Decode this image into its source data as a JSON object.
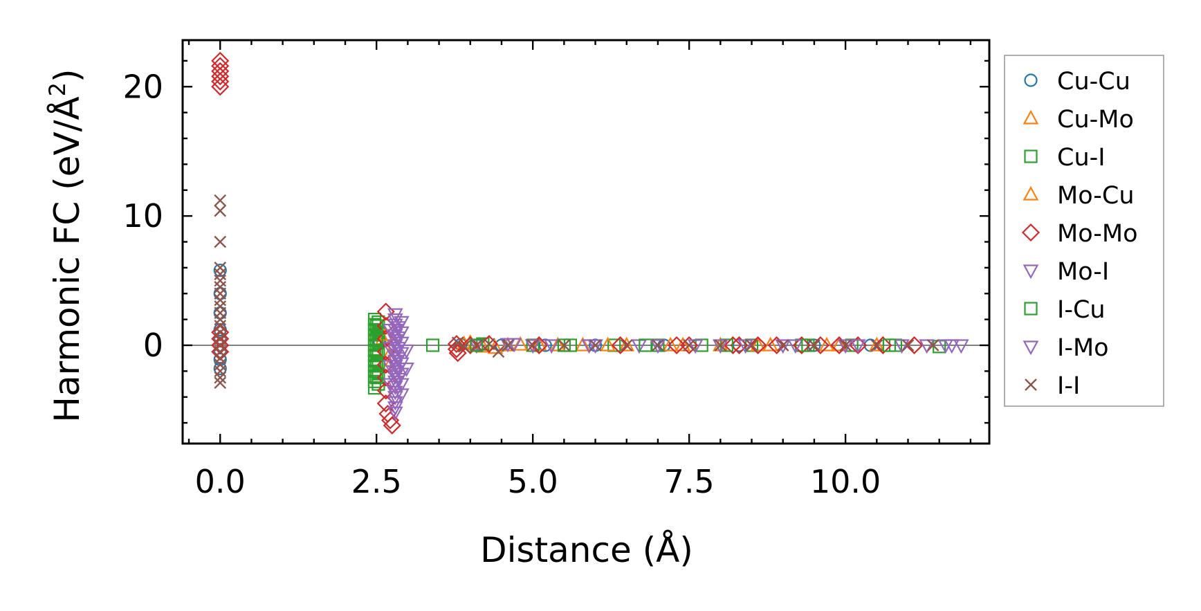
{
  "chart_data": {
    "type": "scatter",
    "xlabel": "Distance (Å)",
    "ylabel_main": "Harmonic FC (eV/Å",
    "ylabel_sup": "2",
    "ylabel_end": ")",
    "xlim": [
      -0.6,
      12.3
    ],
    "ylim": [
      -7.6,
      23.6
    ],
    "xticks": [
      {
        "value": 0.0,
        "label": "0.0"
      },
      {
        "value": 2.5,
        "label": "2.5"
      },
      {
        "value": 5.0,
        "label": "5.0"
      },
      {
        "value": 7.5,
        "label": "7.5"
      },
      {
        "value": 10.0,
        "label": "10.0"
      }
    ],
    "yticks": [
      {
        "value": 0,
        "label": "0"
      },
      {
        "value": 10,
        "label": "10"
      },
      {
        "value": 20,
        "label": "20"
      }
    ],
    "x_minor_step": 0.5,
    "y_minor_step": 2,
    "zero_line": true,
    "grid": false,
    "legend_position": "outside-right",
    "series": [
      {
        "name": "Cu-Cu",
        "marker": "circle",
        "color": "#1f77b4",
        "points": [
          [
            0,
            0.5
          ],
          [
            0,
            -0.5
          ],
          [
            0,
            1.2
          ],
          [
            0,
            -1.1
          ],
          [
            0,
            2.5
          ],
          [
            0,
            4.0
          ],
          [
            0,
            5.8
          ],
          [
            0,
            -1.8
          ],
          [
            2.55,
            0.3
          ],
          [
            3.85,
            0.05
          ],
          [
            4.5,
            0
          ],
          [
            5.2,
            0
          ],
          [
            6.0,
            0
          ],
          [
            7.1,
            0
          ],
          [
            8.3,
            0
          ],
          [
            9.5,
            0
          ],
          [
            10.4,
            0
          ]
        ]
      },
      {
        "name": "Cu-Mo",
        "marker": "triangle-up",
        "color": "#ff7f0e",
        "points": [
          [
            2.6,
            0.5
          ],
          [
            2.7,
            -0.8
          ],
          [
            3.9,
            0.1
          ],
          [
            4.2,
            -0.1
          ],
          [
            4.6,
            0
          ],
          [
            5.1,
            0.05
          ],
          [
            5.8,
            0
          ],
          [
            6.5,
            0
          ],
          [
            7.2,
            0
          ],
          [
            8.0,
            0
          ],
          [
            8.8,
            0
          ],
          [
            9.7,
            0
          ],
          [
            10.5,
            0
          ]
        ]
      },
      {
        "name": "Cu-I",
        "marker": "square",
        "color": "#2ca02c",
        "points": [
          [
            2.47,
            2.0
          ],
          [
            2.47,
            1.6
          ],
          [
            2.47,
            1.2
          ],
          [
            2.47,
            0.8
          ],
          [
            2.47,
            0.4
          ],
          [
            2.47,
            0.0
          ],
          [
            2.47,
            -0.4
          ],
          [
            2.47,
            -0.8
          ],
          [
            2.47,
            -1.2
          ],
          [
            2.47,
            -1.6
          ],
          [
            2.47,
            -2.0
          ],
          [
            2.47,
            -2.4
          ],
          [
            2.47,
            -2.8
          ],
          [
            2.47,
            -3.3
          ],
          [
            2.53,
            1.8
          ],
          [
            2.53,
            1.0
          ],
          [
            2.53,
            0.2
          ],
          [
            2.53,
            -0.6
          ],
          [
            2.53,
            -1.4
          ],
          [
            2.53,
            -2.2
          ],
          [
            2.53,
            -3.0
          ],
          [
            3.4,
            0.0
          ],
          [
            4.2,
            0.1
          ],
          [
            5.0,
            0.0
          ],
          [
            5.6,
            0.0
          ],
          [
            6.3,
            0
          ],
          [
            7.0,
            0
          ],
          [
            7.7,
            0
          ],
          [
            8.5,
            0
          ],
          [
            9.3,
            0
          ],
          [
            10.1,
            0
          ],
          [
            10.8,
            0
          ],
          [
            11.5,
            -0.1
          ]
        ]
      },
      {
        "name": "Mo-Cu",
        "marker": "triangle-up",
        "color": "#ff7f0e",
        "points": [
          [
            2.65,
            0.8
          ],
          [
            2.75,
            -1.2
          ],
          [
            4.0,
            0.2
          ],
          [
            4.4,
            -0.2
          ],
          [
            4.8,
            0.05
          ],
          [
            5.4,
            0
          ],
          [
            6.2,
            0
          ],
          [
            7.4,
            0
          ],
          [
            8.6,
            0
          ],
          [
            9.9,
            0
          ]
        ]
      },
      {
        "name": "Mo-Mo",
        "marker": "diamond",
        "color": "#d62728",
        "points": [
          [
            0,
            22.0
          ],
          [
            0,
            21.6
          ],
          [
            0,
            21.2
          ],
          [
            0,
            20.8
          ],
          [
            0,
            20.4
          ],
          [
            0,
            20.0
          ],
          [
            0,
            1.0
          ],
          [
            0,
            0.5
          ],
          [
            0,
            0.0
          ],
          [
            0,
            -0.5
          ],
          [
            2.65,
            2.6
          ],
          [
            2.65,
            1.5
          ],
          [
            2.65,
            0.5
          ],
          [
            2.65,
            -0.5
          ],
          [
            2.65,
            -1.5
          ],
          [
            2.65,
            -2.5
          ],
          [
            2.65,
            -3.5
          ],
          [
            2.65,
            -4.5
          ],
          [
            2.68,
            -5.3
          ],
          [
            2.72,
            -5.8
          ],
          [
            2.75,
            -6.2
          ],
          [
            3.78,
            0.1
          ],
          [
            3.78,
            -0.3
          ],
          [
            3.8,
            -0.6
          ],
          [
            4.0,
            0.0
          ],
          [
            4.3,
            0.1
          ],
          [
            5.1,
            0.0
          ],
          [
            6.4,
            0.0
          ],
          [
            7.3,
            0
          ],
          [
            7.5,
            0
          ],
          [
            8.2,
            0
          ],
          [
            8.3,
            0
          ],
          [
            8.6,
            0
          ],
          [
            8.9,
            0
          ],
          [
            9.3,
            0
          ],
          [
            9.6,
            0
          ],
          [
            9.9,
            0
          ],
          [
            10.2,
            0
          ],
          [
            10.6,
            0
          ],
          [
            11.1,
            0
          ]
        ]
      },
      {
        "name": "Mo-I",
        "marker": "triangle-down",
        "color": "#9467bd",
        "points": [
          [
            2.8,
            2.4
          ],
          [
            2.8,
            2.0
          ],
          [
            2.8,
            1.6
          ],
          [
            2.8,
            1.2
          ],
          [
            2.8,
            0.8
          ],
          [
            2.8,
            0.4
          ],
          [
            2.8,
            0.0
          ],
          [
            2.8,
            -0.4
          ],
          [
            2.8,
            -0.8
          ],
          [
            2.8,
            -1.2
          ],
          [
            2.8,
            -1.6
          ],
          [
            2.8,
            -2.0
          ],
          [
            2.8,
            -2.4
          ],
          [
            2.8,
            -2.8
          ],
          [
            2.8,
            -3.2
          ],
          [
            2.8,
            -3.6
          ],
          [
            2.8,
            -4.0
          ],
          [
            2.8,
            -4.4
          ],
          [
            2.8,
            -4.8
          ],
          [
            2.8,
            -5.2
          ],
          [
            2.9,
            1.8
          ],
          [
            2.9,
            1.0
          ],
          [
            2.9,
            0.2
          ],
          [
            2.9,
            -0.6
          ],
          [
            2.9,
            -1.4
          ],
          [
            2.9,
            -2.2
          ],
          [
            2.9,
            -3.0
          ],
          [
            2.9,
            -3.8
          ],
          [
            2.72,
            1.2
          ],
          [
            2.72,
            -0.2
          ],
          [
            2.72,
            -1.6
          ],
          [
            2.72,
            -3.0
          ],
          [
            2.98,
            -0.4
          ],
          [
            2.98,
            -1.8
          ],
          [
            4.1,
            0.0
          ],
          [
            4.7,
            0.1
          ],
          [
            5.3,
            0
          ],
          [
            5.9,
            0
          ],
          [
            6.7,
            0
          ],
          [
            7.6,
            0
          ],
          [
            8.4,
            0
          ],
          [
            9.2,
            0
          ],
          [
            10.0,
            0
          ],
          [
            10.9,
            0
          ],
          [
            11.6,
            0
          ],
          [
            11.85,
            0
          ]
        ]
      },
      {
        "name": "I-Cu",
        "marker": "square",
        "color": "#2ca02c",
        "points": [
          [
            2.5,
            1.5
          ],
          [
            2.5,
            0.5
          ],
          [
            2.5,
            -0.5
          ],
          [
            2.5,
            -1.5
          ],
          [
            2.5,
            -2.5
          ],
          [
            4.1,
            0.0
          ],
          [
            5.5,
            0
          ],
          [
            6.8,
            0
          ],
          [
            8.1,
            0
          ],
          [
            9.4,
            0
          ],
          [
            10.7,
            0
          ]
        ]
      },
      {
        "name": "I-Mo",
        "marker": "triangle-down",
        "color": "#9467bd",
        "points": [
          [
            2.85,
            1.4
          ],
          [
            2.85,
            0.6
          ],
          [
            2.85,
            -0.2
          ],
          [
            2.85,
            -1.0
          ],
          [
            2.85,
            -1.8
          ],
          [
            2.85,
            -2.6
          ],
          [
            4.6,
            0.1
          ],
          [
            5.0,
            0
          ],
          [
            6.0,
            0
          ],
          [
            7.0,
            0
          ],
          [
            8.0,
            0
          ],
          [
            9.0,
            0
          ],
          [
            10.2,
            0
          ],
          [
            11.3,
            0
          ],
          [
            11.7,
            0
          ]
        ]
      },
      {
        "name": "I-I",
        "marker": "x",
        "color": "#8c564b",
        "points": [
          [
            0,
            11.2
          ],
          [
            0,
            10.4
          ],
          [
            0,
            8.0
          ],
          [
            0,
            6.0
          ],
          [
            0,
            5.5
          ],
          [
            0,
            5.0
          ],
          [
            0,
            4.5
          ],
          [
            0,
            4.0
          ],
          [
            0,
            3.5
          ],
          [
            0,
            3.0
          ],
          [
            0,
            2.5
          ],
          [
            0,
            2.0
          ],
          [
            0,
            1.5
          ],
          [
            0,
            1.0
          ],
          [
            0,
            0.5
          ],
          [
            0,
            0.0
          ],
          [
            0,
            -0.5
          ],
          [
            0,
            -1.0
          ],
          [
            0,
            -1.5
          ],
          [
            0,
            -2.0
          ],
          [
            0,
            -2.5
          ],
          [
            0,
            -2.9
          ],
          [
            3.8,
            0.2
          ],
          [
            3.9,
            -0.1
          ],
          [
            4.1,
            0.0
          ],
          [
            4.3,
            0.1
          ],
          [
            4.45,
            -0.5
          ],
          [
            4.6,
            0.0
          ],
          [
            5.0,
            0.0
          ],
          [
            5.5,
            0
          ],
          [
            6.0,
            0
          ],
          [
            6.5,
            0
          ],
          [
            7.0,
            0
          ],
          [
            7.5,
            0
          ],
          [
            8.0,
            0
          ],
          [
            8.5,
            0
          ],
          [
            9.0,
            0
          ],
          [
            9.5,
            0
          ],
          [
            10.0,
            0
          ],
          [
            10.5,
            0
          ],
          [
            11.0,
            0
          ],
          [
            11.4,
            0
          ]
        ]
      }
    ]
  }
}
